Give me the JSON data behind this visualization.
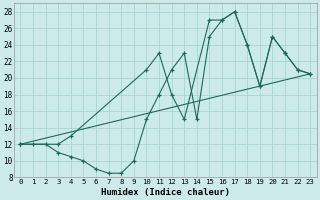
{
  "xlabel": "Humidex (Indice chaleur)",
  "bg_color": "#cceaea",
  "grid_color": "#aad4d4",
  "line_color": "#1a6b5a",
  "xlim": [
    -0.5,
    23.5
  ],
  "ylim": [
    8,
    29
  ],
  "xticks": [
    0,
    1,
    2,
    3,
    4,
    5,
    6,
    7,
    8,
    9,
    10,
    11,
    12,
    13,
    14,
    15,
    16,
    17,
    18,
    19,
    20,
    21,
    22,
    23
  ],
  "yticks": [
    8,
    10,
    12,
    14,
    16,
    18,
    20,
    22,
    24,
    26,
    28
  ],
  "series1_x": [
    0,
    1,
    2,
    3,
    4,
    5,
    6,
    7,
    8,
    9,
    10,
    11,
    12,
    13,
    14,
    15,
    16,
    17,
    18,
    19,
    20,
    21,
    22,
    23
  ],
  "series1_y": [
    12,
    12,
    12,
    11,
    10.5,
    10,
    9,
    8.5,
    8.5,
    10,
    15,
    18,
    21,
    23,
    15,
    25,
    27,
    28,
    24,
    19,
    25,
    23,
    21,
    20.5
  ],
  "series2_x": [
    0,
    3,
    4,
    10,
    11,
    12,
    13,
    15,
    16,
    17,
    18,
    19,
    20,
    21,
    22,
    23
  ],
  "series2_y": [
    12,
    12,
    13,
    21,
    23,
    18,
    15,
    27,
    27,
    28,
    24,
    19,
    25,
    23,
    21,
    20.5
  ],
  "series3_x": [
    0,
    23
  ],
  "series3_y": [
    12,
    20.5
  ]
}
